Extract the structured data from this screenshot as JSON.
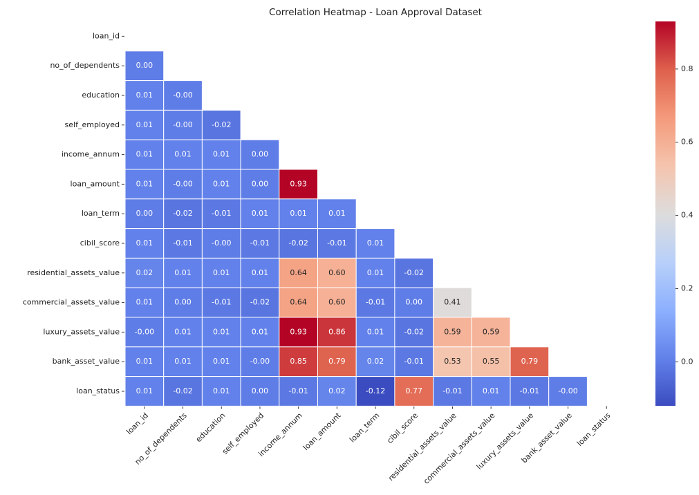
{
  "chart_data": {
    "type": "heatmap",
    "title": "Correlation Heatmap - Loan Approval Dataset",
    "categories": [
      "loan_id",
      "no_of_dependents",
      "education",
      "self_employed",
      "income_annum",
      "loan_amount",
      "loan_term",
      "cibil_score",
      "residential_assets_value",
      "commercial_assets_value",
      "luxury_assets_value",
      "bank_asset_value",
      "loan_status"
    ],
    "colormap": "coolwarm",
    "clim": [
      -0.12,
      0.93
    ],
    "cticks": [
      {
        "value": 0,
        "label": "0.0"
      },
      {
        "value": 0.2,
        "label": "0.2"
      },
      {
        "value": 0.4,
        "label": "0.4"
      },
      {
        "value": 0.6,
        "label": "0.6"
      },
      {
        "value": 0.8,
        "label": "0.8"
      }
    ],
    "values": [
      [],
      [
        0
      ],
      [
        0.01,
        0
      ],
      [
        0.01,
        0,
        -0.02
      ],
      [
        0.01,
        0.01,
        0.01,
        0
      ],
      [
        0.01,
        0,
        0.01,
        0,
        0.93
      ],
      [
        0,
        -0.02,
        -0.01,
        0.01,
        0.01,
        0.01
      ],
      [
        0.01,
        -0.01,
        0,
        -0.01,
        -0.02,
        -0.01,
        0.01
      ],
      [
        0.02,
        0.01,
        0.01,
        0.01,
        0.64,
        0.6,
        0.01,
        -0.02
      ],
      [
        0.01,
        0,
        -0.01,
        -0.02,
        0.64,
        0.6,
        -0.01,
        0,
        0.41
      ],
      [
        0,
        0.01,
        0.01,
        0.01,
        0.93,
        0.86,
        0.01,
        -0.02,
        0.59,
        0.59
      ],
      [
        0.01,
        0.01,
        0.01,
        0,
        0.85,
        0.79,
        0.02,
        -0.01,
        0.53,
        0.55,
        0.79
      ],
      [
        0.01,
        -0.02,
        0.01,
        0,
        -0.01,
        0.02,
        -0.12,
        0.77,
        -0.01,
        0.01,
        -0.01,
        0
      ]
    ],
    "value_labels": [
      [],
      [
        "0.00"
      ],
      [
        "0.01",
        "-0.00"
      ],
      [
        "0.01",
        "-0.00",
        "-0.02"
      ],
      [
        "0.01",
        "0.01",
        "0.01",
        "0.00"
      ],
      [
        "0.01",
        "-0.00",
        "0.01",
        "0.00",
        "0.93"
      ],
      [
        "0.00",
        "-0.02",
        "-0.01",
        "0.01",
        "0.01",
        "0.01"
      ],
      [
        "0.01",
        "-0.01",
        "-0.00",
        "-0.01",
        "-0.02",
        "-0.01",
        "0.01"
      ],
      [
        "0.02",
        "0.01",
        "0.01",
        "0.01",
        "0.64",
        "0.60",
        "0.01",
        "-0.02"
      ],
      [
        "0.01",
        "0.00",
        "-0.01",
        "-0.02",
        "0.64",
        "0.60",
        "-0.01",
        "0.00",
        "0.41"
      ],
      [
        "-0.00",
        "0.01",
        "0.01",
        "0.01",
        "0.93",
        "0.86",
        "0.01",
        "-0.02",
        "0.59",
        "0.59"
      ],
      [
        "0.01",
        "0.01",
        "0.01",
        "-0.00",
        "0.85",
        "0.79",
        "0.02",
        "-0.01",
        "0.53",
        "0.55",
        "0.79"
      ],
      [
        "0.01",
        "-0.02",
        "0.01",
        "0.00",
        "-0.01",
        "0.02",
        "-0.12",
        "0.77",
        "-0.01",
        "0.01",
        "-0.01",
        "-0.00"
      ]
    ]
  }
}
